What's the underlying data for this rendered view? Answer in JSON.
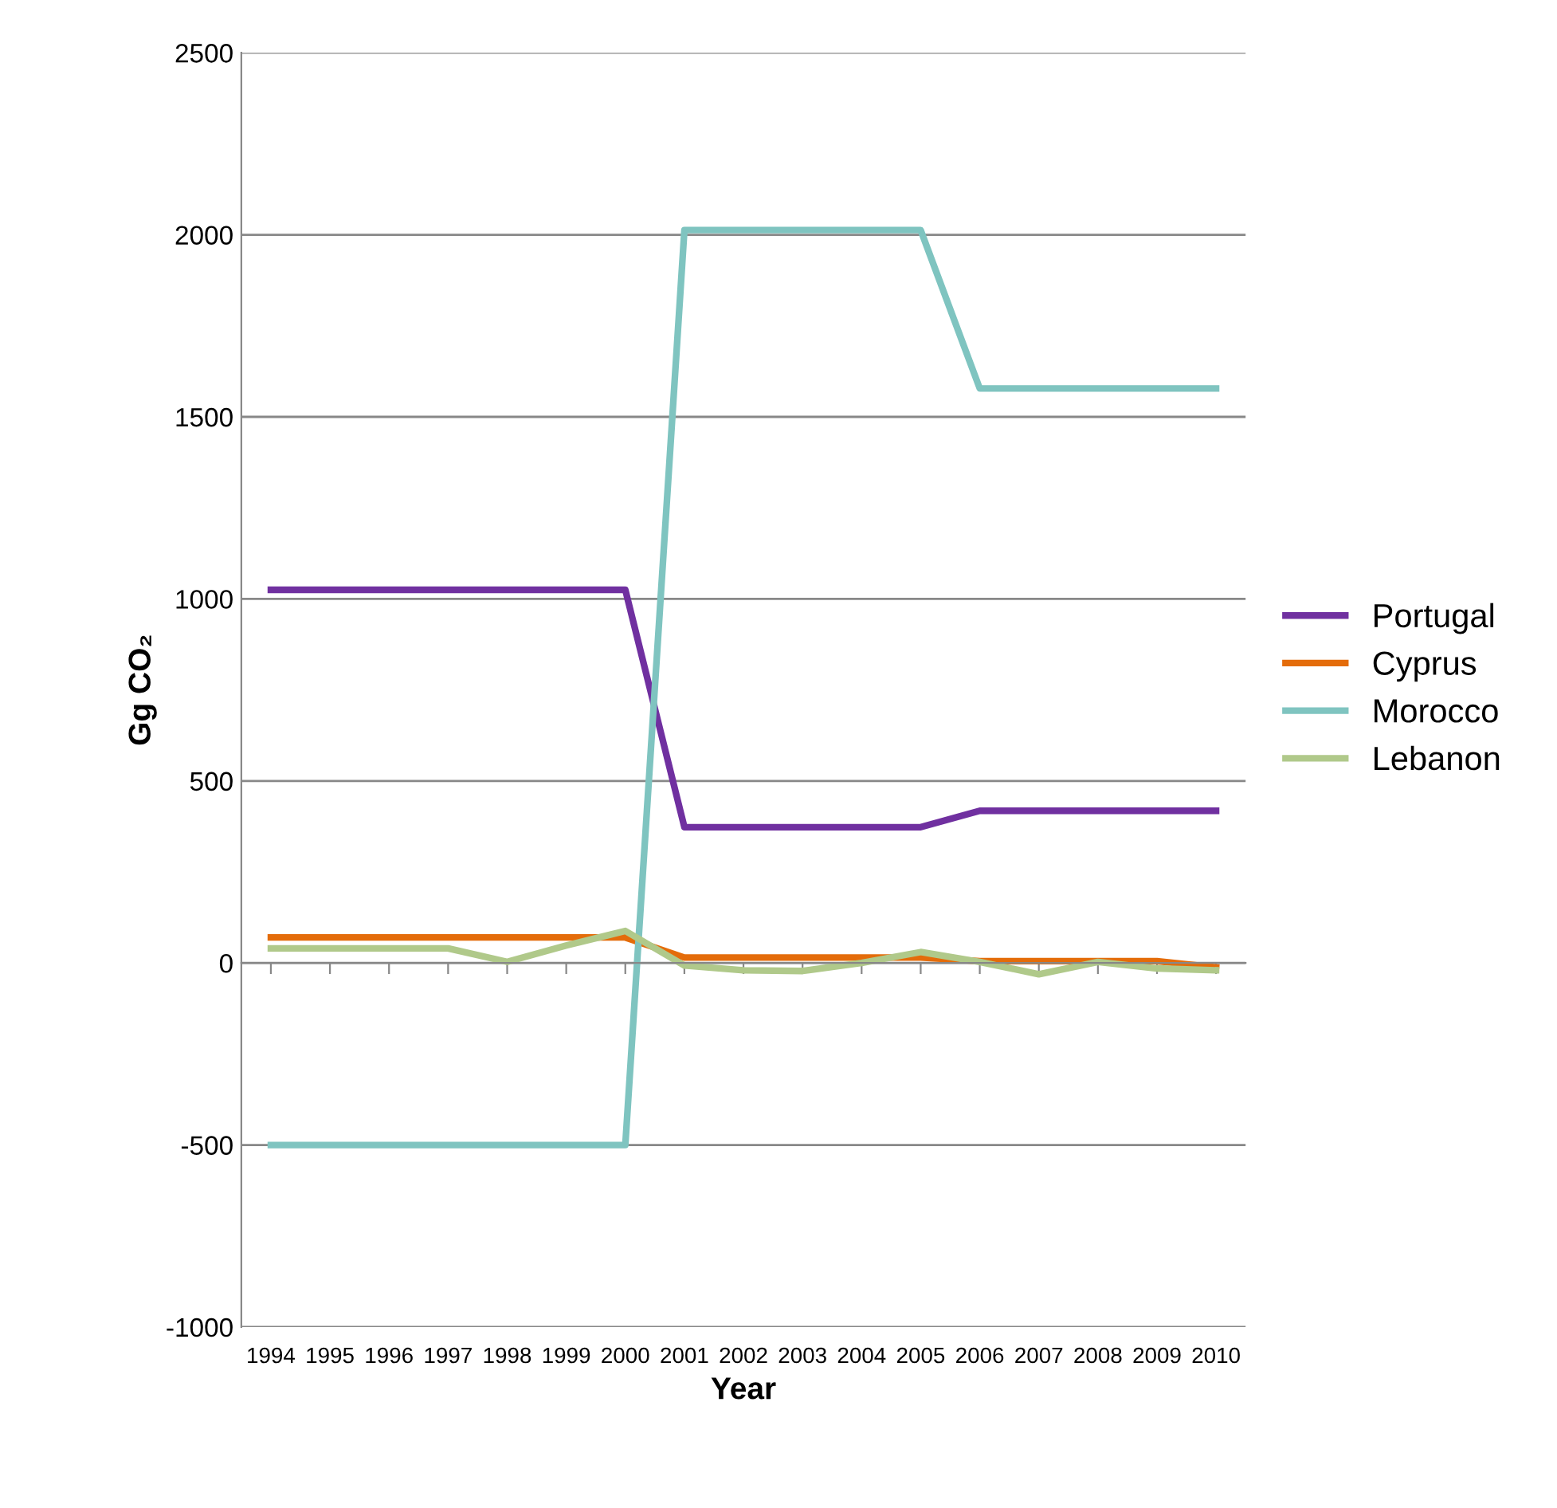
{
  "chart_data": {
    "type": "line",
    "xlabel": "Year",
    "ylabel": "Gg CO₂",
    "categories": [
      "1994",
      "1995",
      "1996",
      "1997",
      "1998",
      "1999",
      "2000",
      "2001",
      "2002",
      "2003",
      "2004",
      "2005",
      "2006",
      "2007",
      "2008",
      "2009",
      "2010"
    ],
    "series": [
      {
        "name": "Portugal",
        "color": "#7030a0",
        "values": [
          1025,
          1025,
          1025,
          1025,
          1025,
          1025,
          1025,
          373,
          373,
          373,
          373,
          373,
          418,
          418,
          418,
          418,
          418
        ]
      },
      {
        "name": "Cyprus",
        "color": "#e46c0a",
        "values": [
          70,
          70,
          70,
          70,
          70,
          70,
          70,
          15,
          15,
          15,
          15,
          15,
          5,
          5,
          5,
          5,
          -12
        ]
      },
      {
        "name": "Morocco",
        "color": "#7fc4c0",
        "values": [
          -500,
          -500,
          -500,
          -500,
          -500,
          -500,
          -500,
          2013,
          2013,
          2013,
          2013,
          2013,
          1578,
          1578,
          1578,
          1578,
          1578
        ]
      },
      {
        "name": "Lebanon",
        "color": "#b0c98a",
        "values": [
          40,
          40,
          40,
          40,
          3,
          48,
          88,
          -7,
          -20,
          -22,
          0,
          30,
          3,
          -31,
          3,
          -15,
          -20
        ]
      }
    ],
    "ylim": [
      -1000,
      2500
    ],
    "yticks": [
      -1000,
      -500,
      0,
      500,
      1000,
      1500,
      2000,
      2500
    ],
    "grid": "y",
    "legend": "right",
    "marker": "none",
    "line_style": "solid"
  }
}
